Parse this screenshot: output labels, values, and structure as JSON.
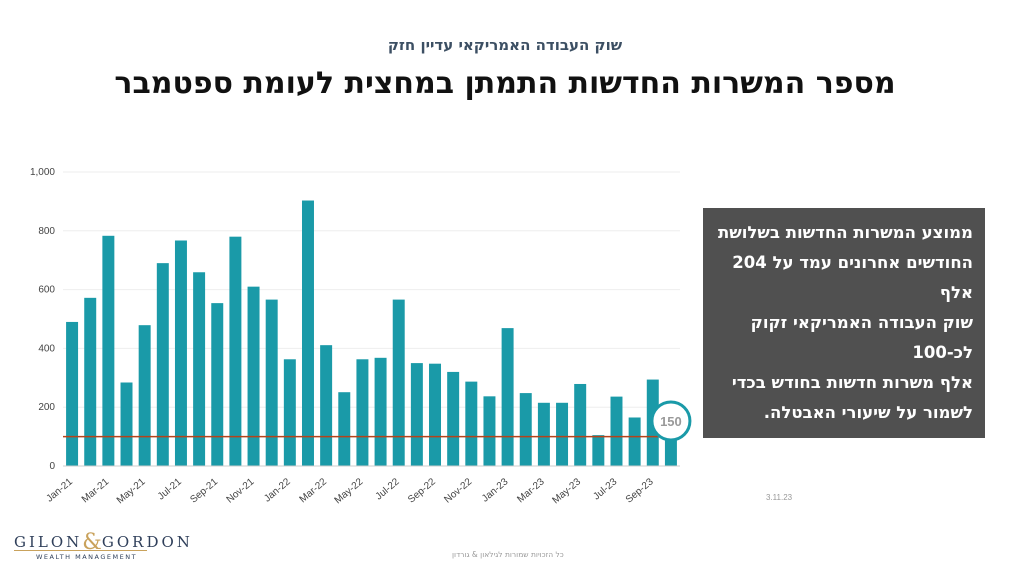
{
  "header": {
    "subtitle": "שוק העבודה האמריקאי עדיין חזק",
    "title": "מספר המשרות החדשות התמתן במחצית לעומת ספטמבר"
  },
  "callout": {
    "text": "ממוצע המשרות החדשות בשלושת\nהחודשים אחרונים עמד על 204 אלף\nשוק העבודה האמריקאי זקוק לכ-100\nאלף משרות חדשות בחודש בכדי\nלשמור על שיעורי האבטלה."
  },
  "date": "3.11.23",
  "footer": "כל הזכויות שמורות לגילאון & גורדון",
  "logo": {
    "name_left": "GILON",
    "amp": "&",
    "name_right": "GORDON",
    "sub": "WEALTH MANAGEMENT",
    "colors": {
      "navy": "#2f3f5a",
      "gold": "#c9a25c"
    }
  },
  "chart_data": {
    "type": "bar",
    "categories": [
      "Jan-21",
      "Feb-21",
      "Mar-21",
      "Apr-21",
      "May-21",
      "Jun-21",
      "Jul-21",
      "Aug-21",
      "Sep-21",
      "Oct-21",
      "Nov-21",
      "Dec-21",
      "Jan-22",
      "Feb-22",
      "Mar-22",
      "Apr-22",
      "May-22",
      "Jun-22",
      "Jul-22",
      "Aug-22",
      "Sep-22",
      "Oct-22",
      "Nov-22",
      "Dec-22",
      "Jan-23",
      "Feb-23",
      "Mar-23",
      "Apr-23",
      "May-23",
      "Jun-23",
      "Jul-23",
      "Aug-23",
      "Sep-23",
      "Oct-23"
    ],
    "tick_labels": [
      "Jan-21",
      "Mar-21",
      "May-21",
      "Jul-21",
      "Sep-21",
      "Nov-21",
      "Jan-22",
      "Mar-22",
      "May-22",
      "Jul-22",
      "Sep-22",
      "Nov-22",
      "Jan-23",
      "Mar-23",
      "May-23",
      "Jul-23",
      "Sep-23"
    ],
    "y_tick_labels": [
      "0",
      "200",
      "400",
      "600",
      "800",
      "1,000"
    ],
    "values": [
      490,
      572,
      783,
      284,
      479,
      690,
      767,
      659,
      554,
      780,
      610,
      566,
      363,
      903,
      411,
      251,
      363,
      368,
      566,
      350,
      348,
      320,
      287,
      237,
      469,
      248,
      215,
      215,
      279,
      105,
      236,
      165,
      294,
      150
    ],
    "ylim": [
      0,
      1000
    ],
    "reference_line": 100,
    "highlight": {
      "category": "Oct-23",
      "label": "150"
    },
    "grid": true,
    "legend": "none",
    "colors": {
      "bar": "#1a9aa8",
      "reference": "#b5431a",
      "grid": "#eeeeee",
      "highlight_ring": "#1a9aa8"
    }
  }
}
